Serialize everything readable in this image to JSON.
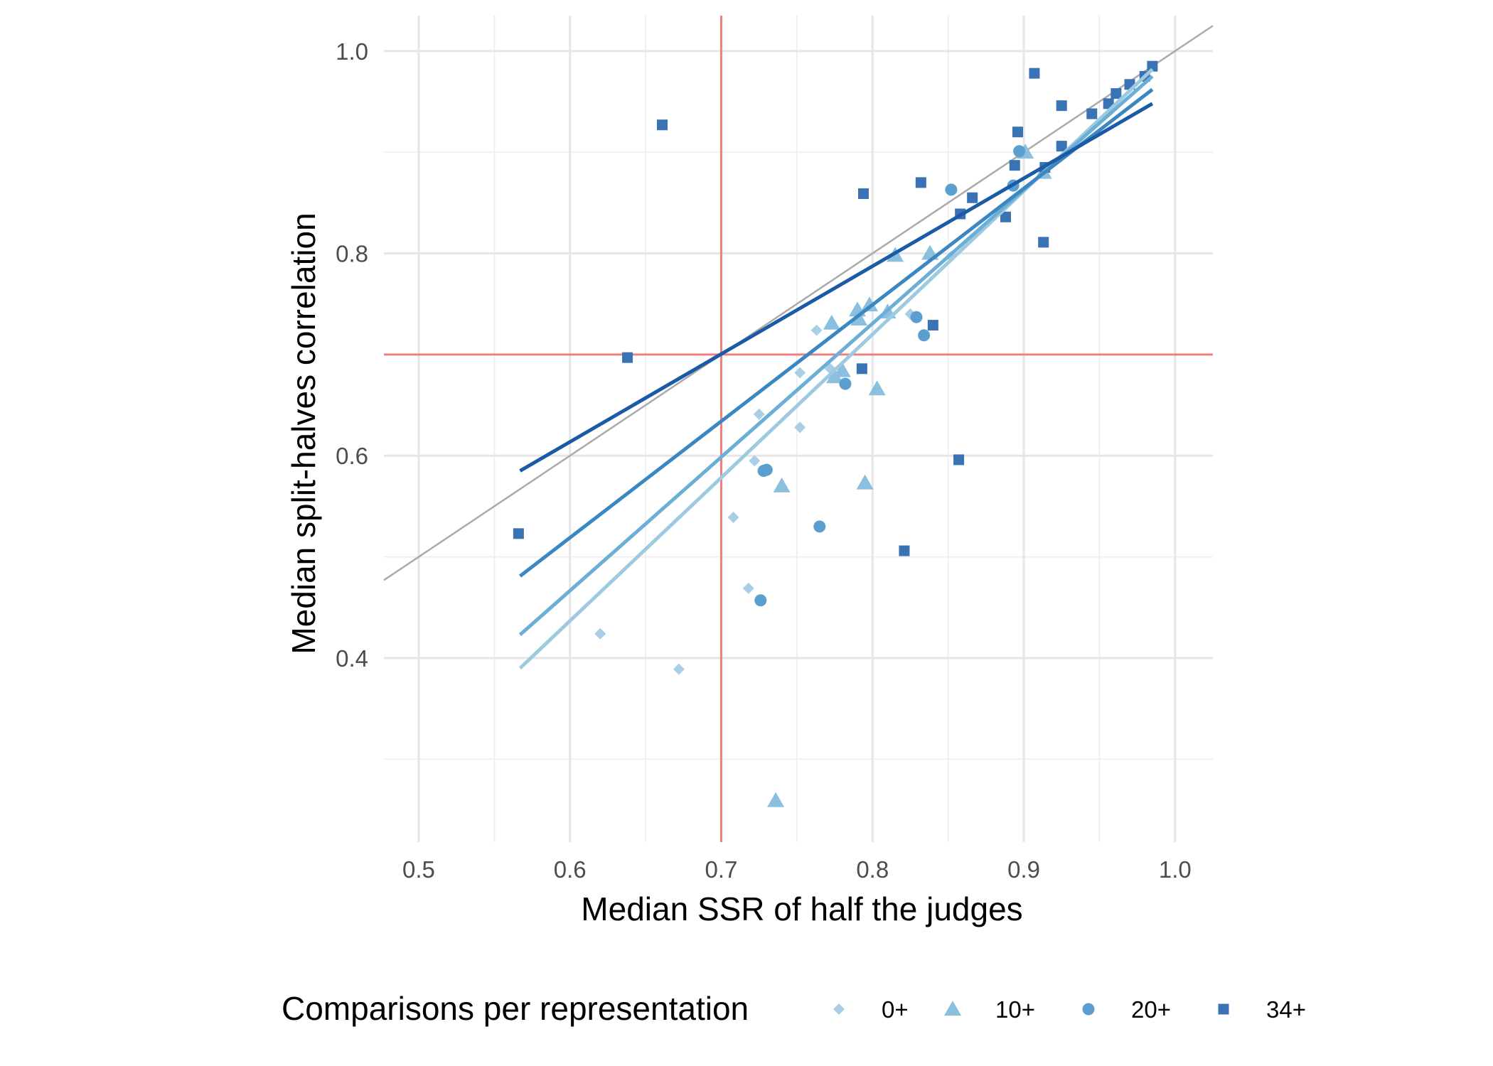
{
  "chart_data": {
    "type": "scatter",
    "xlabel": "Median SSR of half the judges",
    "ylabel": "Median split-halves correlation",
    "xlim": [
      0.477,
      1.025
    ],
    "ylim": [
      0.218,
      1.035
    ],
    "x_ticks": [
      0.5,
      0.6,
      0.7,
      0.8,
      0.9,
      1.0
    ],
    "x_tick_labels": [
      "0.5",
      "0.6",
      "0.7",
      "0.8",
      "0.9",
      "1.0"
    ],
    "y_ticks": [
      0.4,
      0.6,
      0.8,
      1.0
    ],
    "y_tick_labels": [
      "0.4",
      "0.6",
      "0.8",
      "1.0"
    ],
    "grid": true,
    "reference_lines": {
      "vertical_x": 0.7,
      "horizontal_y": 0.7,
      "identity_diagonal": true,
      "reference_color": "#f08080",
      "diagonal_color": "#aaaaaa"
    },
    "legend": {
      "title": "Comparisons per representation",
      "position": "bottom"
    },
    "series": [
      {
        "name": "0+",
        "marker": "diamond",
        "color": "#a9cfe6",
        "line_color": "#9ecae1",
        "fit": [
          [
            0.567,
            0.39
          ],
          [
            0.985,
            0.982
          ]
        ],
        "points": [
          [
            0.62,
            0.424
          ],
          [
            0.672,
            0.389
          ],
          [
            0.708,
            0.539
          ],
          [
            0.718,
            0.469
          ],
          [
            0.722,
            0.595
          ],
          [
            0.725,
            0.641
          ],
          [
            0.752,
            0.628
          ],
          [
            0.752,
            0.682
          ],
          [
            0.763,
            0.724
          ],
          [
            0.772,
            0.686
          ],
          [
            0.825,
            0.74
          ],
          [
            0.852,
            0.797
          ]
        ]
      },
      {
        "name": "10+",
        "marker": "triangle",
        "color": "#8bbfdf",
        "line_color": "#6baed6",
        "fit": [
          [
            0.567,
            0.423
          ],
          [
            0.985,
            0.975
          ]
        ],
        "points": [
          [
            0.736,
            0.259
          ],
          [
            0.74,
            0.57
          ],
          [
            0.773,
            0.731
          ],
          [
            0.775,
            0.678
          ],
          [
            0.78,
            0.684
          ],
          [
            0.79,
            0.744
          ],
          [
            0.791,
            0.735
          ],
          [
            0.795,
            0.573
          ],
          [
            0.798,
            0.749
          ],
          [
            0.803,
            0.666
          ],
          [
            0.81,
            0.742
          ],
          [
            0.815,
            0.798
          ],
          [
            0.838,
            0.8
          ],
          [
            0.901,
            0.9
          ],
          [
            0.913,
            0.88
          ]
        ]
      },
      {
        "name": "20+",
        "marker": "circle",
        "color": "#5a9fcf",
        "line_color": "#3a87c2",
        "fit": [
          [
            0.567,
            0.481
          ],
          [
            0.985,
            0.962
          ]
        ],
        "points": [
          [
            0.726,
            0.457
          ],
          [
            0.728,
            0.585
          ],
          [
            0.73,
            0.586
          ],
          [
            0.765,
            0.53
          ],
          [
            0.782,
            0.671
          ],
          [
            0.829,
            0.737
          ],
          [
            0.834,
            0.719
          ],
          [
            0.852,
            0.863
          ],
          [
            0.893,
            0.867
          ],
          [
            0.897,
            0.901
          ]
        ]
      },
      {
        "name": "34+",
        "marker": "square",
        "color": "#3a73b3",
        "line_color": "#1b5aa5",
        "fit": [
          [
            0.567,
            0.585
          ],
          [
            0.985,
            0.948
          ]
        ],
        "points": [
          [
            0.566,
            0.523
          ],
          [
            0.638,
            0.697
          ],
          [
            0.661,
            0.927
          ],
          [
            0.793,
            0.686
          ],
          [
            0.794,
            0.859
          ],
          [
            0.821,
            0.506
          ],
          [
            0.832,
            0.87
          ],
          [
            0.84,
            0.729
          ],
          [
            0.857,
            0.596
          ],
          [
            0.858,
            0.839
          ],
          [
            0.866,
            0.855
          ],
          [
            0.888,
            0.836
          ],
          [
            0.894,
            0.887
          ],
          [
            0.896,
            0.92
          ],
          [
            0.907,
            0.978
          ],
          [
            0.913,
            0.811
          ],
          [
            0.914,
            0.885
          ],
          [
            0.925,
            0.946
          ],
          [
            0.925,
            0.906
          ],
          [
            0.945,
            0.938
          ],
          [
            0.956,
            0.948
          ],
          [
            0.961,
            0.958
          ],
          [
            0.97,
            0.967
          ],
          [
            0.98,
            0.975
          ],
          [
            0.985,
            0.985
          ]
        ]
      }
    ]
  }
}
